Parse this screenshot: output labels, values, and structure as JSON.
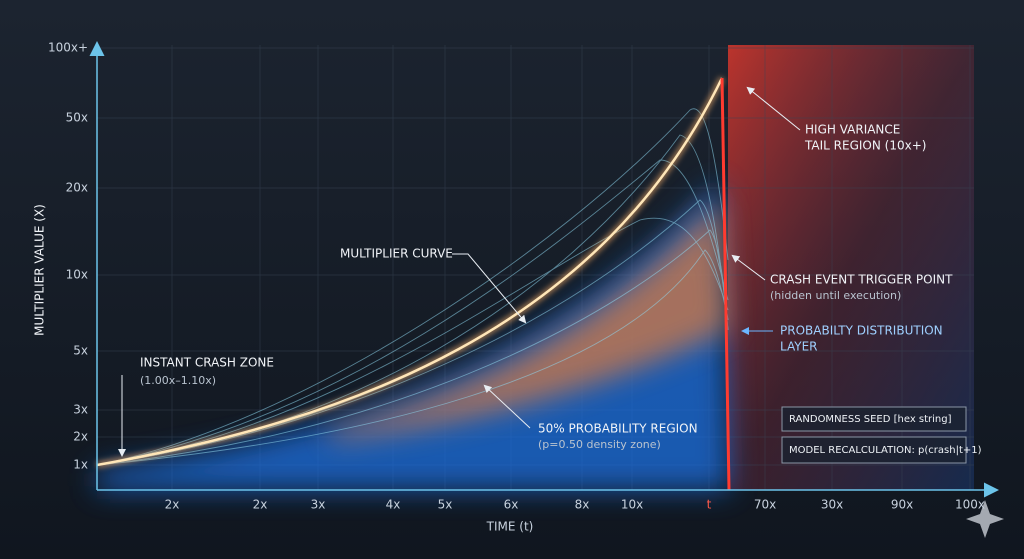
{
  "axes": {
    "y_label": "MULTIPLIER VALUE (X)",
    "x_label": "TIME (t)",
    "y_ticks": [
      "100x+",
      "50x",
      "20x",
      "10x",
      "5x",
      "3x",
      "2x",
      "1x"
    ],
    "x_ticks": [
      "2x",
      "2x",
      "3x",
      "4x",
      "5x",
      "6x",
      "8x",
      "10x",
      "t",
      "70x",
      "30x",
      "90x",
      "100x"
    ]
  },
  "annotations": [
    {
      "title": "MULTIPLIER CURVE"
    },
    {
      "title": "INSTANT CRASH ZONE",
      "detail": "(1.00x–1.10x)"
    },
    {
      "title": "50% PROBABILITY REGION",
      "detail": "(p=0.50 density zone)"
    },
    {
      "title": "HIGH VARIANCE",
      "detail": "TAIL REGION (10x+)"
    },
    {
      "title": "CRASH EVENT TRIGGER POINT",
      "detail": "(hidden until execution)"
    },
    {
      "title": "PROBABILTY DISTRIBUTION",
      "detail": "LAYER"
    }
  ],
  "boxes": [
    "RANDOMNESS SEED [hex string]",
    "MODEL RECALCULATION: p(crash|t+1)"
  ]
}
